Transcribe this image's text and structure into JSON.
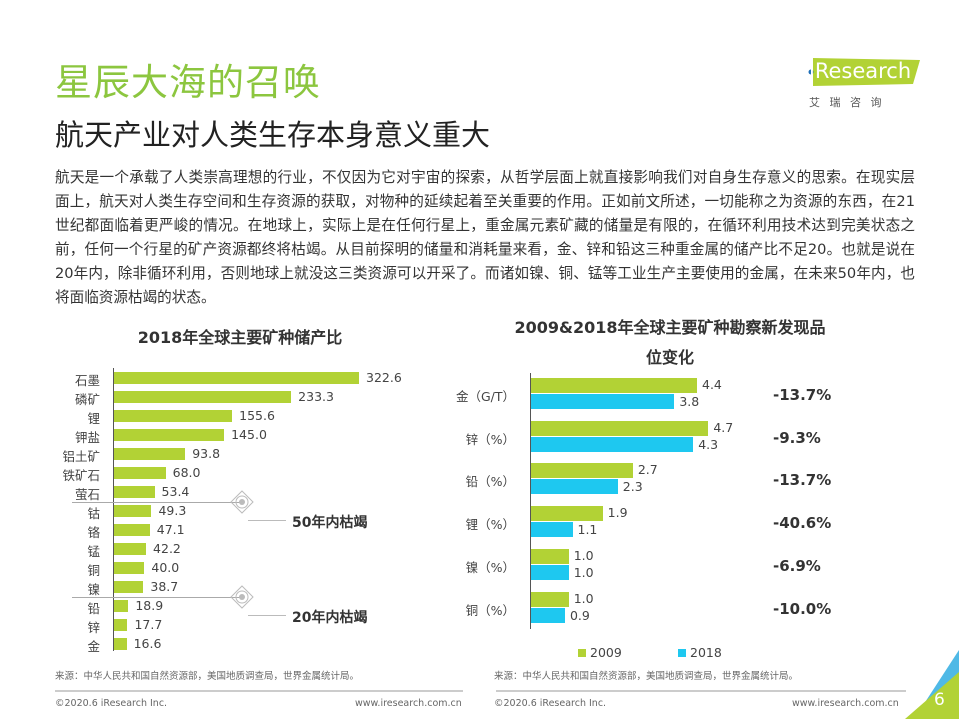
{
  "header": {
    "title": "星辰大海的召唤",
    "subtitle": "航天产业对人类生存本身意义重大",
    "logo_text": "iResearch",
    "logo_cn": "艾 瑞 咨 询"
  },
  "body_text": "航天是一个承载了人类崇高理想的行业，不仅因为它对宇宙的探索，从哲学层面上就直接影响我们对自身生存意义的思索。在现实层面上，航天对人类生存空间和生存资源的获取，对物种的延续起着至关重要的作用。正如前文所述，一切能称之为资源的东西，在21世纪都面临着更严峻的情况。在地球上，实际上是在任何行星上，重金属元素矿藏的储量是有限的，在循环利用技术达到完美状态之前，任何一个行星的矿产资源都终将枯竭。从目前探明的储量和消耗量来看，金、锌和铅这三种重金属的储产比不足20。也就是说在20年内，除非循环利用，否则地球上就没这三类资源可以开采了。而诸如镍、铜、锰等工业生产主要使用的金属，在未来50年内，也将面临资源枯竭的状态。",
  "chart_data": [
    {
      "type": "bar",
      "orientation": "horizontal",
      "title": "2018年全球主要矿种储产比",
      "categories": [
        "石墨",
        "磷矿",
        "锂",
        "钾盐",
        "铝土矿",
        "铁矿石",
        "萤石",
        "钴",
        "铬",
        "锰",
        "铜",
        "镍",
        "铅",
        "锌",
        "金"
      ],
      "values": [
        322.6,
        233.3,
        155.6,
        145.0,
        93.8,
        68.0,
        53.4,
        49.3,
        47.1,
        42.2,
        40.0,
        38.7,
        18.9,
        17.7,
        16.6
      ],
      "labels": [
        "322.6",
        "233.3",
        "155.6",
        "145.0",
        "93.8",
        "68.0",
        "53.4",
        "49.3",
        "47.1",
        "42.2",
        "40.0",
        "38.7",
        "18.9",
        "17.7",
        "16.6"
      ],
      "color": "#b2d235",
      "annotations": [
        "50年内枯竭",
        "20年内枯竭"
      ]
    },
    {
      "type": "bar",
      "orientation": "horizontal",
      "title": "2009&2018年全球主要矿种勘察新发现品位变化",
      "title_lines": [
        "2009&2018年全球主要矿种勘察新发现品",
        "位变化"
      ],
      "categories": [
        "金（G/T）",
        "锌（%）",
        "铅（%）",
        "锂（%）",
        "镍（%）",
        "铜（%）"
      ],
      "series": [
        {
          "name": "2009",
          "values": [
            4.4,
            4.7,
            2.7,
            1.9,
            1.0,
            1.0
          ],
          "labels": [
            "4.4",
            "4.7",
            "2.7",
            "1.9",
            "1.0",
            "1.0"
          ],
          "color": "#b2d235"
        },
        {
          "name": "2018",
          "values": [
            3.8,
            4.3,
            2.3,
            1.1,
            1.0,
            0.9
          ],
          "labels": [
            "3.8",
            "4.3",
            "2.3",
            "1.1",
            "1.0",
            "0.9"
          ],
          "color": "#1ec8f0"
        }
      ],
      "changes": [
        "-13.7%",
        "-9.3%",
        "-13.7%",
        "-40.6%",
        "-6.9%",
        "-10.0%"
      ],
      "legend": "bottom"
    }
  ],
  "source_left": "来源：中华人民共和国自然资源部，美国地质调查局，世界金属统计局。",
  "source_right": "来源：中华人民共和国自然资源部，美国地质调查局，世界金属统计局。",
  "footer": {
    "copyright_left": "©2020.6 iResearch Inc.",
    "url_left": "www.iresearch.com.cn",
    "copyright_right": "©2020.6 iResearch Inc.",
    "url_right": "www.iresearch.com.cn",
    "page": "6"
  }
}
